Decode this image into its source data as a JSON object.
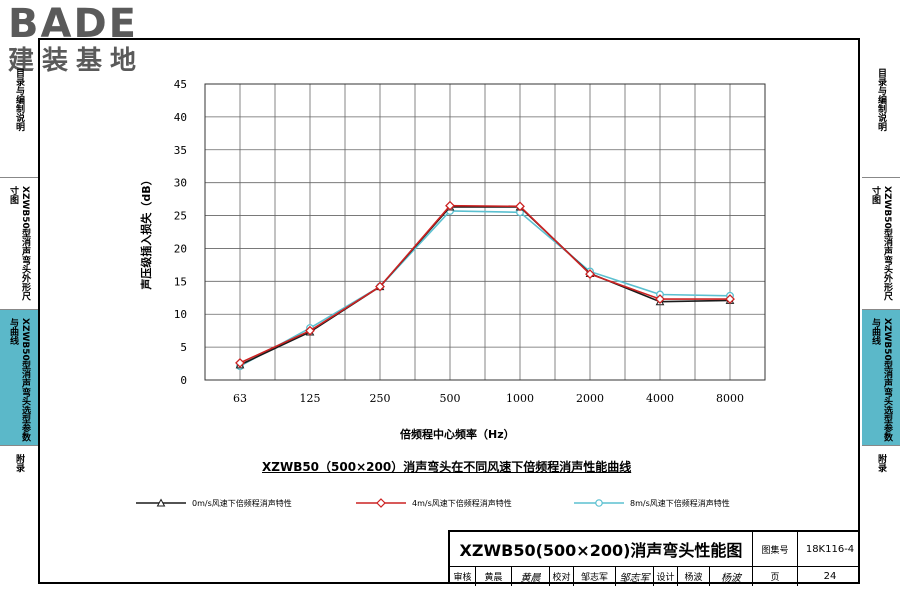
{
  "logo": {
    "main": "BADE",
    "sub": "建装基地"
  },
  "left_tabs": [
    {
      "label": "目录与编制说明",
      "active": false
    },
    {
      "label": "XZWB50型消声弯头外形尺寸图",
      "active": false
    },
    {
      "label": "XZWB50型消声弯头选型参数与曲线",
      "active": true
    },
    {
      "label": "附录",
      "active": false
    }
  ],
  "right_tabs": [
    {
      "label": "目录与编制说明",
      "active": false
    },
    {
      "label": "XZWB50型消声弯头外形尺寸图",
      "active": false
    },
    {
      "label": "XZWB50型消声弯头选型参数与曲线",
      "active": true
    },
    {
      "label": "附录",
      "active": false
    }
  ],
  "chart_title": "XZWB50（500×200）消声弯头在不同风速下倍频程消声性能曲线",
  "colors": {
    "series_0": "#1a1a1a",
    "series_1": "#cc2222",
    "series_2": "#5bc0d0",
    "tab_active": "#5bb8c9"
  },
  "chart_data": {
    "type": "line",
    "categories": [
      "63",
      "125",
      "250",
      "500",
      "1000",
      "2000",
      "4000",
      "8000"
    ],
    "series": [
      {
        "name": "0m/s风速下倍频程消声特性",
        "values": [
          2.3,
          7.3,
          14.2,
          26.3,
          26.3,
          16.2,
          11.9,
          12.1
        ]
      },
      {
        "name": "4m/s风速下倍频程消声特性",
        "values": [
          2.6,
          7.5,
          14.2,
          26.5,
          26.4,
          16.1,
          12.3,
          12.3
        ]
      },
      {
        "name": "8m/s风速下倍频程消声特性",
        "values": [
          2.1,
          7.9,
          14.2,
          25.7,
          25.5,
          16.5,
          13.0,
          12.8
        ]
      }
    ],
    "xlabel": "倍频程中心频率（Hz）",
    "ylabel": "声压级插入损失（dB）",
    "ylim": [
      0,
      45
    ],
    "yticks": [
      0,
      5,
      10,
      15,
      20,
      25,
      30,
      35,
      40,
      45
    ],
    "grid": true,
    "legend": "bottom"
  },
  "title_block": {
    "drawing_title": "XZWB50(500×200)消声弯头性能图",
    "atlas_label": "图集号",
    "atlas_no": "18K116-4",
    "review_label": "审核",
    "reviewer": "黄晨",
    "reviewer_sig": "黄晨",
    "check_label": "校对",
    "checker": "邹志军",
    "checker_sig": "邹志军",
    "design_label": "设计",
    "designer": "杨波",
    "designer_sig": "杨波",
    "page_label": "页",
    "page_no": "24"
  }
}
